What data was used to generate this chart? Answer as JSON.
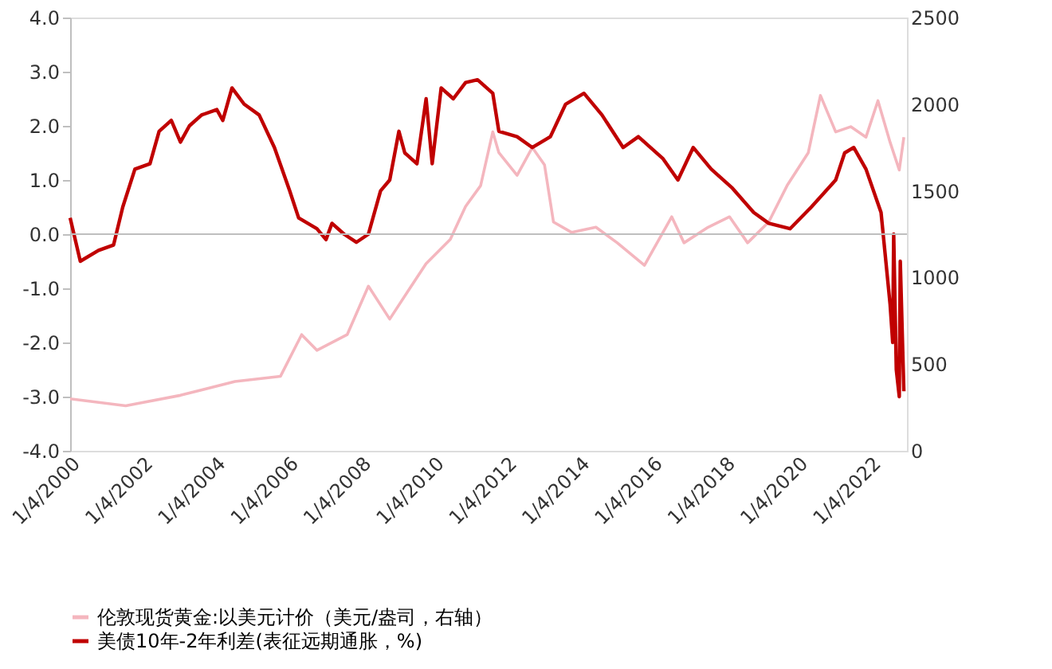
{
  "chart_data": {
    "type": "line",
    "xlim": [
      "2000-01-04",
      "2022-12-31"
    ],
    "xticks": [
      {
        "value": "2000-01-04",
        "label": "1/4/2000"
      },
      {
        "value": "2002-01-04",
        "label": "1/4/2002"
      },
      {
        "value": "2004-01-04",
        "label": "1/4/2004"
      },
      {
        "value": "2006-01-04",
        "label": "1/4/2006"
      },
      {
        "value": "2008-01-04",
        "label": "1/4/2008"
      },
      {
        "value": "2010-01-04",
        "label": "1/4/2010"
      },
      {
        "value": "2012-01-04",
        "label": "1/4/2012"
      },
      {
        "value": "2014-01-04",
        "label": "1/4/2014"
      },
      {
        "value": "2016-01-04",
        "label": "1/4/2016"
      },
      {
        "value": "2018-01-04",
        "label": "1/4/2018"
      },
      {
        "value": "2020-01-04",
        "label": "1/4/2020"
      },
      {
        "value": "2022-01-04",
        "label": "1/4/2022"
      }
    ],
    "ylim": [
      -4,
      4
    ],
    "yticks": [
      {
        "value": -4,
        "label": "-4.0"
      },
      {
        "value": -3,
        "label": "-3.0"
      },
      {
        "value": -2,
        "label": "-2.0"
      },
      {
        "value": -1,
        "label": "-1.0"
      },
      {
        "value": 0,
        "label": "0.0"
      },
      {
        "value": 1,
        "label": "1.0"
      },
      {
        "value": 2,
        "label": "2.0"
      },
      {
        "value": 3,
        "label": "3.0"
      },
      {
        "value": 4,
        "label": "4.0"
      }
    ],
    "y2lim": [
      0,
      2500
    ],
    "y2ticks": [
      0,
      500,
      1000,
      1500,
      2000,
      2500
    ],
    "grid": false,
    "legend": "bottom",
    "marker": "none",
    "line_style": "solid",
    "ref_lines": [
      {
        "axis": "y",
        "value": 0,
        "color": "#bfbfbf"
      }
    ],
    "series": [
      {
        "name": "伦敦现货黄金:以美元计价（美元/盎司，右轴）",
        "color": "#f4b6be",
        "axis": "y2",
        "x": [
          "2000-01-04",
          "2001-07-15",
          "2003-01-15",
          "2004-07-15",
          "2005-10-15",
          "2006-05-15",
          "2006-10-15",
          "2007-08-15",
          "2008-03-15",
          "2008-10-15",
          "2009-04-15",
          "2009-10-15",
          "2010-06-15",
          "2010-11-15",
          "2011-04-15",
          "2011-08-15",
          "2011-10-15",
          "2012-04-15",
          "2012-09-15",
          "2013-01-15",
          "2013-04-15",
          "2013-10-15",
          "2014-06-15",
          "2015-01-15",
          "2015-10-15",
          "2016-07-15",
          "2016-11-15",
          "2017-07-15",
          "2018-02-15",
          "2018-08-15",
          "2019-03-15",
          "2019-09-15",
          "2020-04-15",
          "2020-08-15",
          "2021-01-15",
          "2021-06-15",
          "2021-11-15",
          "2022-03-15",
          "2022-07-15",
          "2022-10-15",
          "2022-11-30"
        ],
        "values": [
          300,
          260,
          320,
          400,
          430,
          670,
          580,
          670,
          950,
          760,
          920,
          1080,
          1220,
          1410,
          1530,
          1840,
          1720,
          1590,
          1750,
          1650,
          1320,
          1260,
          1290,
          1200,
          1070,
          1350,
          1200,
          1290,
          1350,
          1200,
          1320,
          1530,
          1720,
          2050,
          1840,
          1870,
          1810,
          2020,
          1780,
          1620,
          1810
        ]
      },
      {
        "name": "美债10年-2年利差(表征远期通胀，%)",
        "color": "#c00000",
        "x": [
          "2000-01-04",
          "2000-04-15",
          "2000-10-15",
          "2001-03-15",
          "2001-06-15",
          "2001-10-15",
          "2002-03-15",
          "2002-06-15",
          "2002-10-15",
          "2003-01-15",
          "2003-04-15",
          "2003-08-15",
          "2004-01-15",
          "2004-03-15",
          "2004-06-15",
          "2004-10-15",
          "2005-03-15",
          "2005-08-15",
          "2006-01-15",
          "2006-04-15",
          "2006-10-15",
          "2007-01-15",
          "2007-03-15",
          "2007-07-15",
          "2007-11-15",
          "2008-03-15",
          "2008-07-15",
          "2008-10-15",
          "2009-01-15",
          "2009-03-15",
          "2009-07-15",
          "2009-10-15",
          "2009-12-15",
          "2010-03-15",
          "2010-07-15",
          "2010-11-15",
          "2011-03-15",
          "2011-08-15",
          "2011-10-15",
          "2012-04-15",
          "2012-09-15",
          "2013-03-15",
          "2013-08-15",
          "2014-02-15",
          "2014-08-15",
          "2015-03-15",
          "2015-08-15",
          "2016-04-15",
          "2016-09-15",
          "2017-02-15",
          "2017-08-15",
          "2018-03-15",
          "2018-10-15",
          "2019-03-15",
          "2019-10-15",
          "2020-05-15",
          "2021-01-15",
          "2021-04-15",
          "2021-07-15",
          "2021-11-15",
          "2022-04-15",
          "2022-07-15",
          "2022-08-10",
          "2022-08-20",
          "2022-09-15",
          "2022-10-15",
          "2022-10-25",
          "2022-11-30"
        ],
        "values": [
          0.3,
          -0.5,
          -0.3,
          -0.2,
          0.5,
          1.2,
          1.3,
          1.9,
          2.1,
          1.7,
          2.0,
          2.2,
          2.3,
          2.1,
          2.7,
          2.4,
          2.2,
          1.6,
          0.8,
          0.3,
          0.1,
          -0.1,
          0.2,
          0.0,
          -0.15,
          0.0,
          0.8,
          1.0,
          1.9,
          1.5,
          1.3,
          2.5,
          1.3,
          2.7,
          2.5,
          2.8,
          2.85,
          2.6,
          1.9,
          1.8,
          1.6,
          1.8,
          2.4,
          2.6,
          2.2,
          1.6,
          1.8,
          1.4,
          1.0,
          1.6,
          1.2,
          0.85,
          0.4,
          0.2,
          0.1,
          0.5,
          1.0,
          1.5,
          1.6,
          1.2,
          0.4,
          -1.3,
          -2.0,
          0.0,
          -2.5,
          -3.0,
          -0.5,
          -2.9
        ]
      }
    ]
  }
}
